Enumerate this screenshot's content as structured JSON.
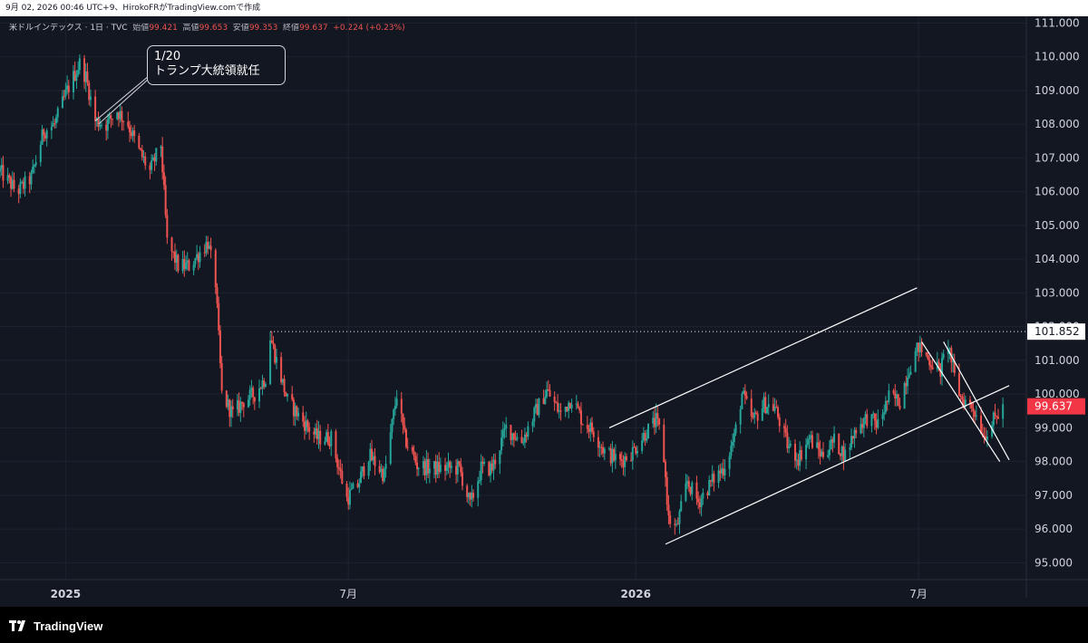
{
  "header": {
    "caption": "9月 02, 2026 00:46 UTC+9、HirokoFRがTradingView.comで作成"
  },
  "legend": {
    "symbol": "米ドルインデックス · 1日 · TVC",
    "open_label": "始値",
    "open_value": "99.421",
    "high_label": "高値",
    "high_value": "99.653",
    "low_label": "安値",
    "low_value": "99.353",
    "close_label": "終値",
    "close_value": "99.637",
    "change": "+0.224 (+0.23%)"
  },
  "annotation": {
    "line1": "1/20",
    "line2": "トランプ大統領就任"
  },
  "brand": {
    "name": "TradingView"
  },
  "chart_data": {
    "type": "candlestick",
    "symbol": "米ドルインデックス",
    "interval": "1日",
    "y_axis_ticks": [
      "111.000",
      "110.000",
      "109.000",
      "108.000",
      "107.000",
      "106.000",
      "105.000",
      "104.000",
      "103.000",
      "102.000",
      "101.000",
      "100.000",
      "99.000",
      "98.000",
      "97.000",
      "96.000",
      "95.000"
    ],
    "x_axis_ticks": [
      "2025",
      "7月",
      "2026",
      "7月"
    ],
    "ylim": [
      94.5,
      111.2
    ],
    "xlim": [
      "2024-11-20",
      "2026-09-08"
    ],
    "grid": true,
    "up_color": "#26a69a",
    "down_color": "#ef5350",
    "horizontal_line": {
      "value": 101.852,
      "label": "101.852",
      "style": "dotted"
    },
    "last_price": {
      "value": 99.637,
      "label": "99.637",
      "color": "#f23645"
    },
    "trendlines": [
      {
        "from": [
          "2026-01-20",
          95.55
        ],
        "to": [
          "2026-08-28",
          100.25
        ],
        "name": ""
      },
      {
        "from": [
          "2025-12-15",
          99.0
        ],
        "to": [
          "2026-06-30",
          103.15
        ],
        "name": ""
      },
      {
        "from": [
          "2026-07-03",
          101.55
        ],
        "to": [
          "2026-08-22",
          98.0
        ],
        "name": ""
      },
      {
        "from": [
          "2026-07-17",
          101.55
        ],
        "to": [
          "2026-08-28",
          98.05
        ],
        "name": ""
      }
    ],
    "series": [
      {
        "name": "",
        "points": [
          [
            "2024-11-20",
            106.6
          ],
          [
            "2024-12-01",
            106.0
          ],
          [
            "2024-12-10",
            106.4
          ],
          [
            "2024-12-18",
            107.8
          ],
          [
            "2024-12-25",
            108.0
          ],
          [
            "2025-01-02",
            109.0
          ],
          [
            "2025-01-10",
            109.8
          ],
          [
            "2025-01-14",
            109.4
          ],
          [
            "2025-01-20",
            108.1
          ],
          [
            "2025-01-27",
            108.0
          ],
          [
            "2025-02-03",
            108.4
          ],
          [
            "2025-02-10",
            108.0
          ],
          [
            "2025-02-17",
            107.2
          ],
          [
            "2025-02-24",
            106.6
          ],
          [
            "2025-03-03",
            107.4
          ],
          [
            "2025-03-07",
            104.5
          ],
          [
            "2025-03-14",
            103.8
          ],
          [
            "2025-03-21",
            103.8
          ],
          [
            "2025-03-28",
            104.2
          ],
          [
            "2025-04-02",
            104.5
          ],
          [
            "2025-04-07",
            103.3
          ],
          [
            "2025-04-11",
            100.0
          ],
          [
            "2025-04-18",
            99.4
          ],
          [
            "2025-04-25",
            99.8
          ],
          [
            "2025-05-02",
            100.0
          ],
          [
            "2025-05-09",
            100.5
          ],
          [
            "2025-05-12",
            101.7
          ],
          [
            "2025-05-16",
            101.0
          ],
          [
            "2025-05-23",
            99.8
          ],
          [
            "2025-06-02",
            99.2
          ],
          [
            "2025-06-11",
            98.7
          ],
          [
            "2025-06-20",
            98.7
          ],
          [
            "2025-06-30",
            96.9
          ],
          [
            "2025-07-07",
            97.3
          ],
          [
            "2025-07-14",
            98.2
          ],
          [
            "2025-07-24",
            97.6
          ],
          [
            "2025-08-01",
            100.0
          ],
          [
            "2025-08-06",
            98.7
          ],
          [
            "2025-08-14",
            97.9
          ],
          [
            "2025-08-22",
            97.8
          ],
          [
            "2025-09-01",
            97.8
          ],
          [
            "2025-09-10",
            97.8
          ],
          [
            "2025-09-17",
            96.7
          ],
          [
            "2025-09-24",
            97.8
          ],
          [
            "2025-10-01",
            97.8
          ],
          [
            "2025-10-10",
            99.0
          ],
          [
            "2025-10-20",
            98.6
          ],
          [
            "2025-10-28",
            99.4
          ],
          [
            "2025-11-05",
            100.1
          ],
          [
            "2025-11-14",
            99.4
          ],
          [
            "2025-11-21",
            99.9
          ],
          [
            "2025-11-28",
            99.2
          ],
          [
            "2025-12-05",
            98.9
          ],
          [
            "2025-12-12",
            98.3
          ],
          [
            "2025-12-22",
            98.0
          ],
          [
            "2025-12-30",
            98.3
          ],
          [
            "2026-01-08",
            98.9
          ],
          [
            "2026-01-14",
            99.2
          ],
          [
            "2026-01-18",
            98.7
          ],
          [
            "2026-01-22",
            96.3
          ],
          [
            "2026-01-27",
            96.0
          ],
          [
            "2026-02-03",
            97.4
          ],
          [
            "2026-02-10",
            96.8
          ],
          [
            "2026-02-20",
            97.5
          ],
          [
            "2026-02-26",
            97.8
          ],
          [
            "2026-03-05",
            98.7
          ],
          [
            "2026-03-10",
            100.0
          ],
          [
            "2026-03-17",
            99.2
          ],
          [
            "2026-03-24",
            99.7
          ],
          [
            "2026-03-31",
            99.6
          ],
          [
            "2026-04-08",
            98.5
          ],
          [
            "2026-04-15",
            98.1
          ],
          [
            "2026-04-22",
            98.7
          ],
          [
            "2026-04-30",
            98.2
          ],
          [
            "2026-05-08",
            98.6
          ],
          [
            "2026-05-15",
            98.2
          ],
          [
            "2026-05-22",
            99.0
          ],
          [
            "2026-05-29",
            99.3
          ],
          [
            "2026-06-05",
            99.1
          ],
          [
            "2026-06-12",
            99.9
          ],
          [
            "2026-06-19",
            99.8
          ],
          [
            "2026-06-25",
            100.8
          ],
          [
            "2026-07-01",
            101.4
          ],
          [
            "2026-07-08",
            101.0
          ],
          [
            "2026-07-15",
            100.7
          ],
          [
            "2026-07-20",
            101.5
          ],
          [
            "2026-07-24",
            100.5
          ],
          [
            "2026-07-28",
            99.9
          ],
          [
            "2026-08-05",
            99.6
          ],
          [
            "2026-08-12",
            98.8
          ],
          [
            "2026-08-18",
            99.2
          ],
          [
            "2026-08-24",
            99.6
          ]
        ]
      }
    ]
  }
}
